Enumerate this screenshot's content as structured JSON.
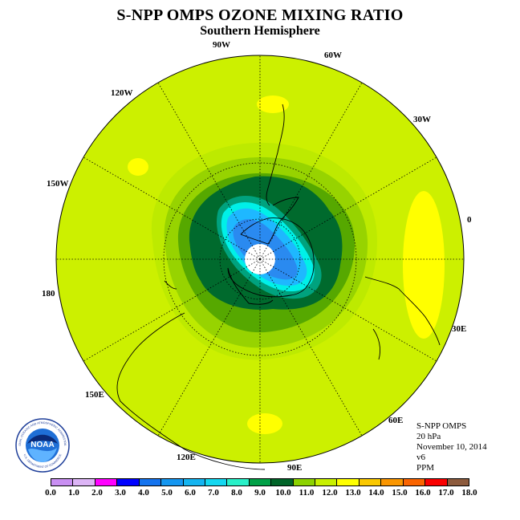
{
  "header": {
    "title": "S-NPP OMPS OZONE MIXING RATIO",
    "subtitle": "Southern Hemisphere"
  },
  "map": {
    "projection": "south-polar-stereographic",
    "longitude_labels": [
      "0",
      "30E",
      "60E",
      "90E",
      "120E",
      "150E",
      "180",
      "150W",
      "120W",
      "90W",
      "60W",
      "30W"
    ],
    "colors": {
      "background_field": "#ccf000",
      "ring_yellow_green": "#bdea00",
      "ring_light_green": "#97d300",
      "ring_mid_green": "#56a800",
      "dark_green": "#006a2d",
      "teal": "#00a27e",
      "cyan": "#00f0e8",
      "sky_blue": "#1eb8ff",
      "blue": "#2a8af0",
      "yellow_patch": "#ffff00",
      "pole_mask": "#ffffff"
    }
  },
  "info": {
    "instrument": "S-NPP OMPS",
    "level": "20 hPa",
    "date": "November 10, 2014",
    "version": "v6",
    "units": "PPM"
  },
  "legend": {
    "colors": [
      "#c98ff2",
      "#dcb4f5",
      "#ff00ff",
      "#0000ff",
      "#1473ee",
      "#1496f0",
      "#14b4f0",
      "#14d7f0",
      "#28f0c8",
      "#00a046",
      "#006428",
      "#8cd200",
      "#c8f000",
      "#ffff00",
      "#fac800",
      "#fa9600",
      "#fa6400",
      "#fa0000",
      "#8c5a3c"
    ],
    "ticks": [
      "0.0",
      "1.0",
      "2.0",
      "3.0",
      "4.0",
      "5.0",
      "6.0",
      "7.0",
      "8.0",
      "9.0",
      "10.0",
      "11.0",
      "12.0",
      "13.0",
      "14.0",
      "15.0",
      "16.0",
      "17.0",
      "18.0"
    ]
  },
  "logo": {
    "text": "NOAA",
    "ring_text": "NATIONAL OCEANIC AND ATMOSPHERIC ADMINISTRATION",
    "ring_text_bottom": "U.S. DEPARTMENT OF COMMERCE"
  }
}
